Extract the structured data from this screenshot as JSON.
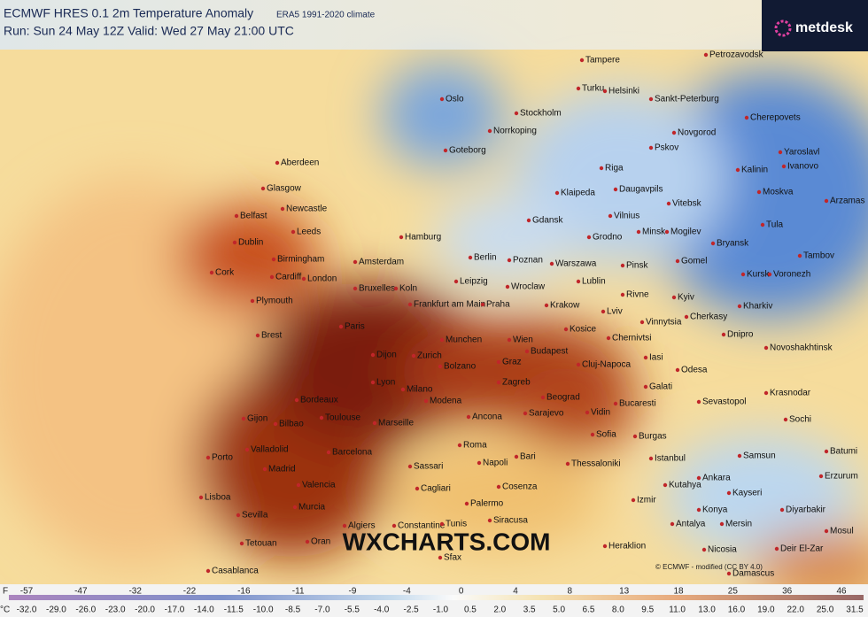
{
  "header": {
    "title": "ECMWF HRES 0.1 2m Temperature Anomaly",
    "climate": "ERA5 1991-2020 climate",
    "run": "Run: Sun 24 May 12Z Valid: Wed 27 May 21:00 UTC",
    "logo": "metdesk"
  },
  "watermark": "WXCHARTS.COM",
  "credit": "© ECMWF - modified (CC BY 4.0)",
  "cities": [
    "Tampere",
    "Petrozavodsk",
    "Oslo",
    "Turku",
    "Helsinki",
    "Sankt-Peterburg",
    "Stockholm",
    "Cherepovets",
    "Norrkoping",
    "Novgorod",
    "Pskov",
    "Yaroslavl",
    "Goteborg",
    "Ivanovo",
    "Aberdeen",
    "Riga",
    "Kalinin",
    "Moskva",
    "Glasgow",
    "Klaipeda",
    "Daugavpils",
    "Arzamas",
    "Vitebsk",
    "Newcastle",
    "Belfast",
    "Gdansk",
    "Vilnius",
    "Leeds",
    "Dublin",
    "Hamburg",
    "Grodno",
    "Minsk",
    "Mogilev",
    "Tula",
    "Bryansk",
    "Tambov",
    "Birmingham",
    "Berlin",
    "Poznan",
    "Warszawa",
    "Pinsk",
    "Gomel",
    "Amsterdam",
    "Cork",
    "Cardiff",
    "London",
    "Kursk",
    "Voronezh",
    "Leipzig",
    "Wroclaw",
    "Lublin",
    "Rivne",
    "Kyiv",
    "Bruxelles",
    "Koln",
    "Plymouth",
    "Frankfurt am Main",
    "Praha",
    "Krakow",
    "Lviv",
    "Kharkiv",
    "Cherkasy",
    "Vinnytsia",
    "Paris",
    "Brest",
    "Kosice",
    "Chernivtsi",
    "Dnipro",
    "Munchen",
    "Wien",
    "Novoshakhtinsk",
    "Budapest",
    "Cluj-Napoca",
    "Iasi",
    "Odesa",
    "Dijon",
    "Graz",
    "Zurich",
    "Bolzano",
    "Lyon",
    "Zagreb",
    "Galati",
    "Krasnodar",
    "Bordeaux",
    "Beograd",
    "Bucaresti",
    "Sevastopol",
    "Vidin",
    "Sochi",
    "Milano",
    "Modena",
    "Toulouse",
    "Marseille",
    "Ancona",
    "Sarajevo",
    "Gijon",
    "Bilbao",
    "Sofia",
    "Burgas",
    "Batumi",
    "Porto",
    "Valladolid",
    "Barcelona",
    "Roma",
    "Bari",
    "Samsun",
    "Madrid",
    "Sassari",
    "Napoli",
    "Thessaloniki",
    "Istanbul",
    "Erzurum",
    "Valencia",
    "Cosenza",
    "Kutahya",
    "Ankara",
    "Kayseri",
    "Cagliari",
    "Lisboa",
    "Murcia",
    "Palermo",
    "Izmir",
    "Konya",
    "Diyarbakir",
    "Sevilla",
    "Siracusa",
    "Antalya",
    "Mersin",
    "Mosul",
    "Algiers",
    "Constantine",
    "Tunis",
    "Heraklion",
    "Nicosia",
    "Deir El-Zar",
    "Tetouan",
    "Oran",
    "Sfax",
    "Damascus",
    "Casablanca"
  ],
  "colorbar": {
    "f_unit": "F",
    "f_labels": [
      "-57",
      "-47",
      "-32",
      "-22",
      "-16",
      "-11",
      "-9",
      "-4",
      "0",
      "4",
      "8",
      "13",
      "18",
      "25",
      "36",
      "46"
    ],
    "c_unit": "°C",
    "c_labels": [
      "-32.0",
      "-29.0",
      "-26.0",
      "-23.0",
      "-20.0",
      "-17.0",
      "-14.0",
      "-11.5",
      "-10.0",
      "-8.5",
      "-7.0",
      "-5.5",
      "-4.0",
      "-2.5",
      "-1.0",
      "0.5",
      "2.0",
      "3.5",
      "5.0",
      "6.5",
      "8.0",
      "9.5",
      "11.0",
      "13.0",
      "16.0",
      "19.0",
      "22.0",
      "25.0",
      "31.5"
    ]
  }
}
